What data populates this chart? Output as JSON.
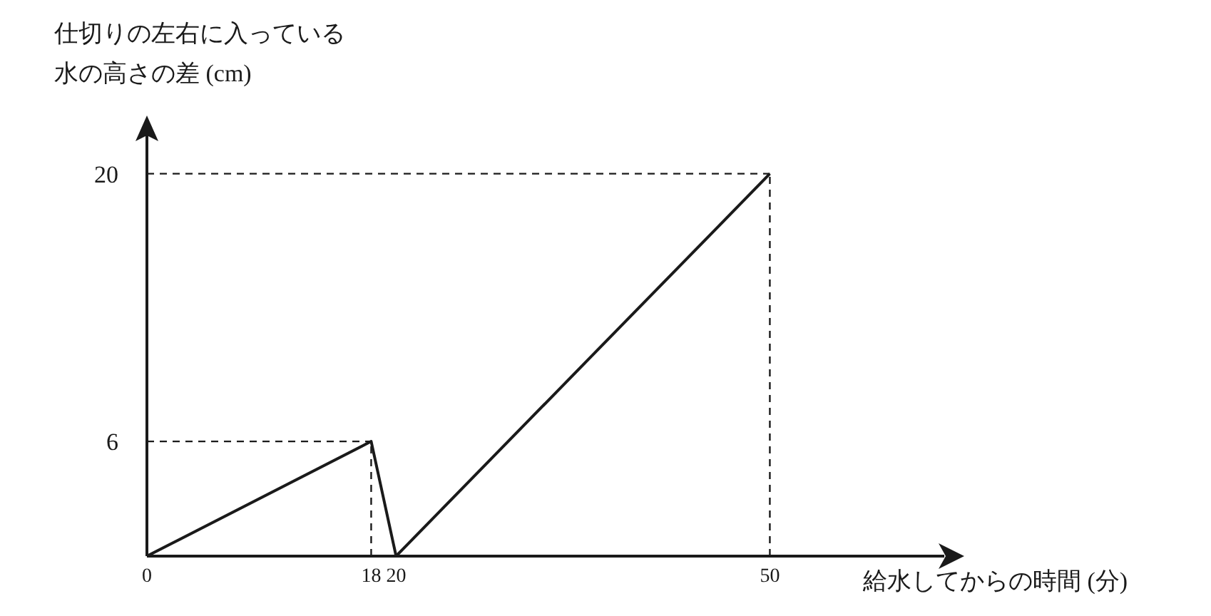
{
  "chart_data": {
    "type": "line",
    "xlabel": "給水してからの時間 (分)",
    "ylabel": "仕切りの左右に入っている水の高さの差 (cm)",
    "x": [
      0,
      18,
      20,
      50
    ],
    "series": [
      {
        "color": "#1a1a1a",
        "values": [
          0,
          6,
          0,
          20
        ]
      }
    ],
    "xlim": [
      0,
      64
    ],
    "ylim": [
      0,
      22
    ],
    "xticks": [
      0,
      18,
      20,
      50
    ],
    "yticks": [
      6,
      20
    ],
    "ref_lines": [
      {
        "axis": "y",
        "value": 6,
        "line_style": "dashed",
        "color": "#1a1a1a"
      },
      {
        "axis": "y",
        "value": 20,
        "line_style": "dashed",
        "color": "#1a1a1a"
      },
      {
        "axis": "x",
        "value": 18,
        "line_style": "dashed",
        "color": "#1a1a1a"
      },
      {
        "axis": "x",
        "value": 50,
        "line_style": "dashed",
        "color": "#1a1a1a"
      }
    ],
    "grid": false,
    "legend": false,
    "marker": "none",
    "line_style": "solid"
  }
}
